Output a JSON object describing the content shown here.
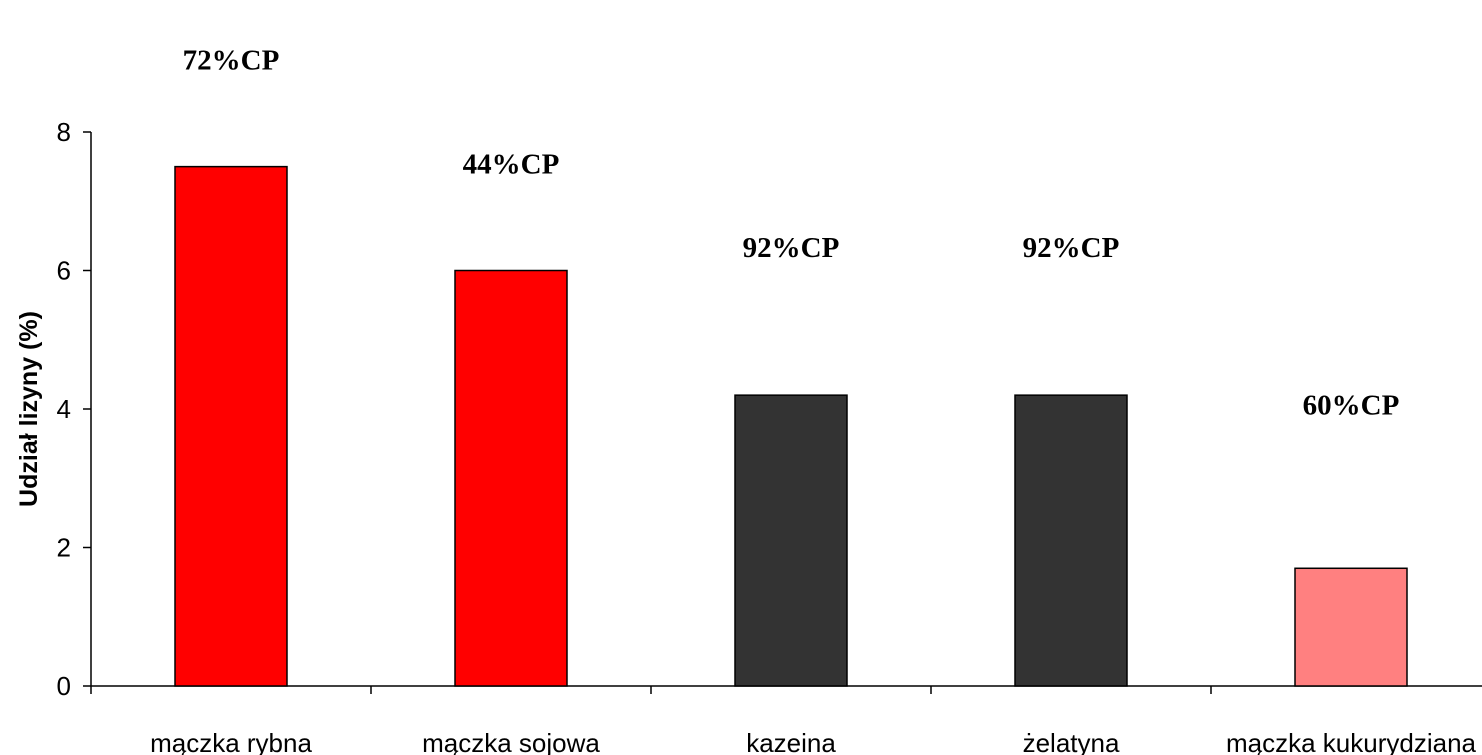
{
  "chart_data": {
    "type": "bar",
    "title": "",
    "xlabel": "",
    "ylabel": "Udział lizyny (%)",
    "ylim": [
      0,
      8
    ],
    "yticks": [
      0,
      2,
      4,
      6,
      8
    ],
    "grid": false,
    "categories": [
      "mączka rybna",
      "mączka sojowa",
      "kazeina",
      "żelatyna",
      "mączka kukurydziana"
    ],
    "values": [
      7.5,
      6.0,
      4.2,
      4.2,
      1.7
    ],
    "bar_colors": [
      "#ff0000",
      "#ff0000",
      "#333333",
      "#333333",
      "#ff8080"
    ],
    "data_labels": [
      "72%CP",
      "44%CP",
      "92%CP",
      "92%CP",
      "60%CP"
    ]
  }
}
